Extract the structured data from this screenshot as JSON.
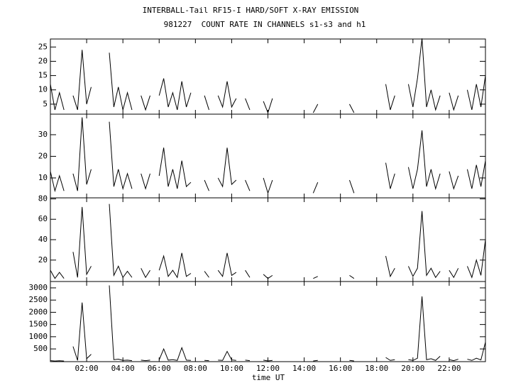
{
  "chart_data": [
    {
      "type": "line",
      "title": "INTERBALL-Tail RF15-I HARD/SOFT X-RAY EMISSION",
      "subtitle": "981227  COUNT RATE IN CHANNELS s1-s3 and h1",
      "x": [
        0,
        0.25,
        0.5,
        0.75,
        1,
        1.25,
        1.5,
        1.75,
        2,
        2.25,
        2.5,
        2.75,
        3,
        3.25,
        3.5,
        3.75,
        4,
        4.25,
        4.5,
        4.75,
        5,
        5.25,
        5.5,
        5.75,
        6,
        6.25,
        6.5,
        6.75,
        7,
        7.25,
        7.5,
        7.75,
        8,
        8.25,
        8.5,
        8.75,
        9,
        9.25,
        9.5,
        9.75,
        10,
        10.25,
        10.5,
        10.75,
        11,
        11.25,
        11.5,
        11.75,
        12,
        12.25,
        12.5,
        12.75,
        13,
        13.25,
        13.5,
        13.75,
        14,
        14.25,
        14.5,
        14.75,
        15,
        15.25,
        15.5,
        15.75,
        16,
        16.25,
        16.5,
        16.75,
        17,
        17.25,
        17.5,
        17.75,
        18,
        18.25,
        18.5,
        18.75,
        19,
        19.25,
        19.5,
        19.75,
        20,
        20.25,
        20.5,
        20.75,
        21,
        21.25,
        21.5,
        21.75,
        22,
        22.25,
        22.5,
        22.75,
        23,
        23.25,
        23.5,
        23.75,
        24
      ],
      "values": [
        12,
        3,
        9,
        3,
        null,
        8,
        3,
        24,
        5,
        11,
        null,
        null,
        null,
        23,
        4,
        11,
        3,
        9,
        3,
        null,
        8,
        3,
        8,
        null,
        8,
        14,
        4,
        9,
        3,
        13,
        4,
        9,
        null,
        null,
        8,
        3,
        null,
        8,
        4,
        13,
        4,
        7,
        null,
        7,
        3,
        null,
        null,
        6,
        2,
        7,
        null,
        null,
        null,
        null,
        null,
        null,
        null,
        null,
        2,
        5,
        null,
        null,
        null,
        null,
        null,
        null,
        5,
        2,
        null,
        null,
        null,
        null,
        null,
        null,
        12,
        3,
        8,
        null,
        null,
        12,
        4,
        14,
        28,
        4,
        10,
        3,
        8,
        null,
        9,
        3,
        8,
        null,
        10,
        3,
        12,
        4,
        15
      ],
      "color": "#000000",
      "xlim": [
        0,
        24
      ],
      "xticks": [
        2,
        4,
        6,
        8,
        10,
        12,
        14,
        16,
        18,
        20,
        22
      ],
      "ylim": [
        1.5,
        27.8
      ],
      "yticks": [
        5,
        10,
        15,
        20,
        25
      ]
    },
    {
      "type": "line",
      "x": [
        0,
        0.25,
        0.5,
        0.75,
        1,
        1.25,
        1.5,
        1.75,
        2,
        2.25,
        2.5,
        2.75,
        3,
        3.25,
        3.5,
        3.75,
        4,
        4.25,
        4.5,
        4.75,
        5,
        5.25,
        5.5,
        5.75,
        6,
        6.25,
        6.5,
        6.75,
        7,
        7.25,
        7.5,
        7.75,
        8,
        8.25,
        8.5,
        8.75,
        9,
        9.25,
        9.5,
        9.75,
        10,
        10.25,
        10.5,
        10.75,
        11,
        11.25,
        11.5,
        11.75,
        12,
        12.25,
        12.5,
        12.75,
        13,
        13.25,
        13.5,
        13.75,
        14,
        14.25,
        14.5,
        14.75,
        15,
        15.25,
        15.5,
        15.75,
        16,
        16.25,
        16.5,
        16.75,
        17,
        17.25,
        17.5,
        17.75,
        18,
        18.25,
        18.5,
        18.75,
        19,
        19.25,
        19.5,
        19.75,
        20,
        20.25,
        20.5,
        20.75,
        21,
        21.25,
        21.5,
        21.75,
        22,
        22.25,
        22.5,
        22.75,
        23,
        23.25,
        23.5,
        23.75,
        24
      ],
      "values": [
        13,
        4,
        11,
        4,
        null,
        12,
        4,
        38,
        7,
        14,
        null,
        null,
        null,
        36,
        6,
        14,
        5,
        12,
        5,
        null,
        12,
        5,
        12,
        null,
        11,
        24,
        6,
        14,
        5,
        18,
        6,
        8,
        null,
        null,
        9,
        4,
        null,
        10,
        6,
        24,
        7,
        9,
        null,
        9,
        4,
        null,
        null,
        10,
        3,
        9,
        null,
        null,
        null,
        null,
        null,
        null,
        null,
        null,
        3,
        8,
        null,
        null,
        null,
        null,
        null,
        null,
        9,
        3,
        null,
        null,
        null,
        null,
        null,
        null,
        17,
        5,
        12,
        null,
        null,
        15,
        5,
        14,
        32,
        6,
        14,
        5,
        12,
        null,
        13,
        5,
        11,
        null,
        14,
        5,
        16,
        6,
        18
      ],
      "color": "#000000",
      "xlim": [
        0,
        24
      ],
      "xticks": [
        2,
        4,
        6,
        8,
        10,
        12,
        14,
        16,
        18,
        20,
        22
      ],
      "ylim": [
        0.8,
        39.5
      ],
      "yticks": [
        10,
        20,
        30
      ]
    },
    {
      "type": "line",
      "x": [
        0,
        0.25,
        0.5,
        0.75,
        1,
        1.25,
        1.5,
        1.75,
        2,
        2.25,
        2.5,
        2.75,
        3,
        3.25,
        3.5,
        3.75,
        4,
        4.25,
        4.5,
        4.75,
        5,
        5.25,
        5.5,
        5.75,
        6,
        6.25,
        6.5,
        6.75,
        7,
        7.25,
        7.5,
        7.75,
        8,
        8.25,
        8.5,
        8.75,
        9,
        9.25,
        9.5,
        9.75,
        10,
        10.25,
        10.5,
        10.75,
        11,
        11.25,
        11.5,
        11.75,
        12,
        12.25,
        12.5,
        12.75,
        13,
        13.25,
        13.5,
        13.75,
        14,
        14.25,
        14.5,
        14.75,
        15,
        15.25,
        15.5,
        15.75,
        16,
        16.25,
        16.5,
        16.75,
        17,
        17.25,
        17.5,
        17.75,
        18,
        18.25,
        18.5,
        18.75,
        19,
        19.25,
        19.5,
        19.75,
        20,
        20.25,
        20.5,
        20.75,
        21,
        21.25,
        21.5,
        21.75,
        22,
        22.25,
        22.5,
        22.75,
        23,
        23.25,
        23.5,
        23.75,
        24
      ],
      "values": [
        10,
        2,
        8,
        2,
        null,
        28,
        3,
        72,
        6,
        14,
        null,
        null,
        null,
        75,
        5,
        14,
        3,
        9,
        3,
        null,
        12,
        3,
        10,
        null,
        10,
        24,
        4,
        10,
        3,
        27,
        4,
        7,
        null,
        null,
        9,
        3,
        null,
        10,
        4,
        27,
        5,
        8,
        null,
        10,
        3,
        null,
        null,
        6,
        2,
        5,
        null,
        null,
        null,
        null,
        null,
        null,
        null,
        null,
        2,
        4,
        null,
        null,
        null,
        null,
        null,
        null,
        5,
        2,
        null,
        null,
        null,
        null,
        null,
        null,
        24,
        4,
        12,
        null,
        null,
        14,
        4,
        12,
        68,
        5,
        12,
        3,
        9,
        null,
        10,
        3,
        12,
        null,
        14,
        3,
        20,
        5,
        40
      ],
      "color": "#000000",
      "xlim": [
        0,
        24
      ],
      "xticks": [
        2,
        4,
        6,
        8,
        10,
        12,
        14,
        16,
        18,
        20,
        22
      ],
      "ylim": [
        -1,
        81
      ],
      "yticks": [
        20,
        40,
        60,
        80
      ]
    },
    {
      "type": "line",
      "xlabel": "time UT",
      "x": [
        0,
        0.25,
        0.5,
        0.75,
        1,
        1.25,
        1.5,
        1.75,
        2,
        2.25,
        2.5,
        2.75,
        3,
        3.25,
        3.5,
        3.75,
        4,
        4.25,
        4.5,
        4.75,
        5,
        5.25,
        5.5,
        5.75,
        6,
        6.25,
        6.5,
        6.75,
        7,
        7.25,
        7.5,
        7.75,
        8,
        8.25,
        8.5,
        8.75,
        9,
        9.25,
        9.5,
        9.75,
        10,
        10.25,
        10.5,
        10.75,
        11,
        11.25,
        11.5,
        11.75,
        12,
        12.25,
        12.5,
        12.75,
        13,
        13.25,
        13.5,
        13.75,
        14,
        14.25,
        14.5,
        14.75,
        15,
        15.25,
        15.5,
        15.75,
        16,
        16.25,
        16.5,
        16.75,
        17,
        17.25,
        17.5,
        17.75,
        18,
        18.25,
        18.5,
        18.75,
        19,
        19.25,
        19.5,
        19.75,
        20,
        20.25,
        20.5,
        20.75,
        21,
        21.25,
        21.5,
        21.75,
        22,
        22.25,
        22.5,
        22.75,
        23,
        23.25,
        23.5,
        23.75,
        24
      ],
      "values": [
        20,
        5,
        15,
        5,
        null,
        600,
        30,
        2400,
        100,
        280,
        null,
        null,
        null,
        3100,
        60,
        80,
        30,
        40,
        20,
        null,
        40,
        20,
        40,
        null,
        50,
        500,
        40,
        60,
        30,
        550,
        40,
        30,
        null,
        null,
        30,
        20,
        null,
        40,
        30,
        400,
        50,
        30,
        null,
        40,
        20,
        null,
        null,
        40,
        10,
        30,
        null,
        null,
        null,
        null,
        null,
        null,
        null,
        null,
        10,
        30,
        null,
        null,
        null,
        null,
        null,
        null,
        30,
        10,
        null,
        null,
        null,
        null,
        null,
        null,
        150,
        30,
        60,
        null,
        null,
        60,
        30,
        120,
        2650,
        60,
        100,
        30,
        200,
        null,
        60,
        20,
        80,
        null,
        80,
        30,
        120,
        50,
        780
      ],
      "color": "#000000",
      "xlim": [
        0,
        24
      ],
      "xticks": [
        {
          "value": 2,
          "label": "02:00"
        },
        {
          "value": 4,
          "label": "04:00"
        },
        {
          "value": 6,
          "label": "06:00"
        },
        {
          "value": 8,
          "label": "08:00"
        },
        {
          "value": 10,
          "label": "10:00"
        },
        {
          "value": 12,
          "label": "12:00"
        },
        {
          "value": 14,
          "label": "14:00"
        },
        {
          "value": 16,
          "label": "16:00"
        },
        {
          "value": 18,
          "label": "18:00"
        },
        {
          "value": 20,
          "label": "20:00"
        },
        {
          "value": 22,
          "label": "22:00"
        }
      ],
      "ylim": [
        -20,
        3260
      ],
      "yticks": [
        500,
        1000,
        1500,
        2000,
        2500,
        3000
      ]
    }
  ]
}
